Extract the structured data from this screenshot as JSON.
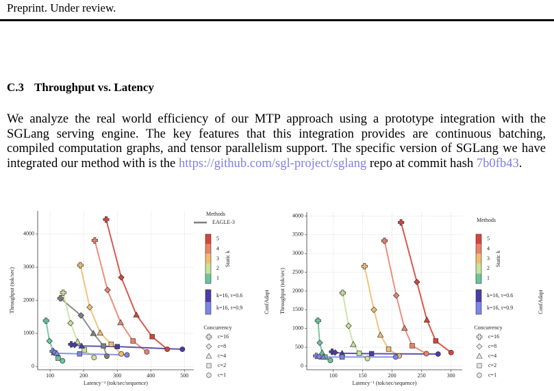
{
  "header": {
    "text": "Preprint. Under review."
  },
  "section": {
    "number": "C.3",
    "title": "Throughput vs. Latency"
  },
  "paragraph": [
    {
      "text": "We analyze the real world efficiency of our MTP approach using a prototype integration with the SGLang serving engine. The key features that this integration provides are continuous batching, compiled computation graphs, and tensor parallelism support. The specific version of SGLang we have integrated our method with is the "
    },
    {
      "text": "https://github.com/sgl-project/sglang",
      "link": true
    },
    {
      "text": " repo at commit hash "
    },
    {
      "text": "7b0fb43",
      "link": true
    },
    {
      "text": "."
    }
  ],
  "chart_data": [
    {
      "type": "line",
      "xlabel": "Latency⁻¹ (tok/sec/sequence)",
      "ylabel": "Throughput (tok/sec)",
      "xlim": [
        63,
        528
      ],
      "ylim": [
        -100,
        4700
      ],
      "xticks": [
        100,
        200,
        300,
        400,
        500
      ],
      "yticks": [
        0,
        1000,
        2000,
        3000,
        4000
      ],
      "grid": true,
      "legend_title": "Methods",
      "static_label": "Static k",
      "adapt_label": "ConfAdapt",
      "concurrency_title": "Concurrency",
      "concurrency": [
        "c=16",
        "c=8",
        "c=4",
        "c=2",
        "c=1"
      ],
      "markers": [
        "cross",
        "diamond",
        "triangle",
        "square",
        "circle"
      ],
      "series": [
        {
          "name": "EAGLE-3",
          "group": "baseline",
          "color": "#7f7f7f",
          "x": [
            131,
            192,
            229,
            259,
            269
          ],
          "values": [
            2060,
            1540,
            1000,
            620,
            310
          ]
        },
        {
          "name": "5",
          "group": "static",
          "color": "#d7443a",
          "x": [
            267,
            312,
            357,
            404,
            449
          ],
          "values": [
            4440,
            2690,
            1560,
            900,
            520
          ]
        },
        {
          "name": "4",
          "group": "static",
          "color": "#e9826a",
          "x": [
            233,
            271,
            310,
            347,
            388
          ],
          "values": [
            3810,
            2310,
            1330,
            770,
            440
          ]
        },
        {
          "name": "3",
          "group": "static",
          "color": "#f2bc6c",
          "x": [
            190,
            218,
            249,
            282,
            312
          ],
          "values": [
            3060,
            1790,
            1020,
            670,
            380
          ]
        },
        {
          "name": "2",
          "group": "static",
          "color": "#c8e29a",
          "x": [
            139,
            161,
            182,
            202,
            231
          ],
          "values": [
            2230,
            1310,
            750,
            500,
            270
          ]
        },
        {
          "name": "1",
          "group": "static",
          "color": "#6cc49b",
          "x": [
            88,
            98,
            112,
            124,
            137
          ],
          "values": [
            1380,
            770,
            420,
            250,
            170
          ]
        },
        {
          "name": "k=16, τ=0.6",
          "group": "adapt",
          "color": "#4a3ca8",
          "x": [
            163,
            173,
            194,
            300,
            494
          ],
          "values": [
            670,
            650,
            620,
            600,
            520
          ]
        },
        {
          "name": "k=16, τ=0.9",
          "group": "adapt",
          "color": "#7b86e8",
          "x": [
            108,
            114,
            120,
            188,
            329
          ],
          "values": [
            460,
            420,
            400,
            380,
            350
          ]
        }
      ]
    },
    {
      "type": "line",
      "xlabel": "Latency⁻¹ (tok/sec/sequence)",
      "ylabel": "Throughput (tok/sec)",
      "xlim": [
        55,
        319
      ],
      "ylim": [
        -100,
        4100
      ],
      "xticks": [
        100,
        150,
        200,
        250,
        300
      ],
      "yticks": [
        0,
        500,
        1000,
        1500,
        2000,
        2500,
        3000,
        3500,
        4000
      ],
      "grid": true,
      "legend_title": "Methods",
      "static_label": "Static k",
      "adapt_label": "ConfAdapt",
      "concurrency_title": "Concurrency",
      "concurrency": [
        "c=16",
        "c=8",
        "c=4",
        "c=2",
        "c=1"
      ],
      "markers": [
        "cross",
        "diamond",
        "triangle",
        "square",
        "circle"
      ],
      "series": [
        {
          "name": "5",
          "group": "static",
          "color": "#d7443a",
          "x": [
            215,
            242,
            259,
            274,
            300
          ],
          "values": [
            3830,
            2240,
            1230,
            670,
            360
          ]
        },
        {
          "name": "4",
          "group": "static",
          "color": "#e9826a",
          "x": [
            187,
            207,
            221,
            234,
            258
          ],
          "values": [
            3340,
            1880,
            1010,
            540,
            330
          ]
        },
        {
          "name": "3",
          "group": "static",
          "color": "#f2bc6c",
          "x": [
            153,
            169,
            180,
            194,
            212
          ],
          "values": [
            2660,
            1500,
            830,
            450,
            270
          ]
        },
        {
          "name": "2",
          "group": "static",
          "color": "#c8e29a",
          "x": [
            116,
            126,
            134,
            144,
            158
          ],
          "values": [
            1950,
            1070,
            580,
            340,
            200
          ]
        },
        {
          "name": "1",
          "group": "static",
          "color": "#6cc49b",
          "x": [
            74,
            77,
            81,
            86,
            95
          ],
          "values": [
            1210,
            620,
            360,
            240,
            150
          ]
        },
        {
          "name": "k=16, τ=0.6",
          "group": "adapt",
          "color": "#4a3ca8",
          "x": [
            98,
            103,
            115,
            165,
            278
          ],
          "values": [
            380,
            360,
            340,
            330,
            320
          ]
        },
        {
          "name": "k=16, τ=0.9",
          "group": "adapt",
          "color": "#7b86e8",
          "x": [
            71,
            76,
            83,
            115,
            206
          ],
          "values": [
            270,
            250,
            240,
            240,
            240
          ]
        }
      ]
    }
  ]
}
